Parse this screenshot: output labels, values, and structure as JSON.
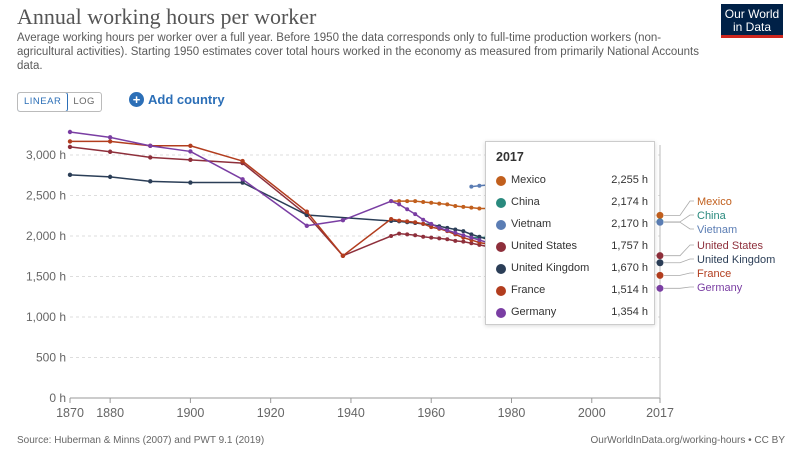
{
  "header": {
    "title": "Annual working hours per worker",
    "subtitle": "Average working hours per worker over a full year. Before 1950 the data corresponds only to full-time production workers (non-agricultural activities). Starting 1950 estimates cover total hours worked in the economy as measured from primarily National Accounts data.",
    "logo_line1": "Our World",
    "logo_line2": "in Data"
  },
  "controls": {
    "linear_label": "LINEAR",
    "log_label": "LOG",
    "add_country_label": "Add country"
  },
  "tooltip": {
    "year": "2017",
    "rows": [
      {
        "name": "Mexico",
        "value": "2,255 h"
      },
      {
        "name": "China",
        "value": "2,174 h"
      },
      {
        "name": "Vietnam",
        "value": "2,170 h"
      },
      {
        "name": "United States",
        "value": "1,757 h"
      },
      {
        "name": "United Kingdom",
        "value": "1,670 h"
      },
      {
        "name": "France",
        "value": "1,514 h"
      },
      {
        "name": "Germany",
        "value": "1,354 h"
      }
    ]
  },
  "footer": {
    "source": "Source: Huberman & Minns (2007) and PWT 9.1 (2019)",
    "credit": "OurWorldInData.org/working-hours • CC BY"
  },
  "chart_data": {
    "type": "line",
    "title": "Annual working hours per worker",
    "xlabel": "",
    "ylabel": "",
    "xlim": [
      1870,
      2017
    ],
    "ylim": [
      0,
      3000
    ],
    "x_ticks": [
      1870,
      1880,
      1900,
      1920,
      1940,
      1960,
      1980,
      2000,
      2017
    ],
    "y_ticks": [
      0,
      500,
      1000,
      1500,
      2000,
      2500,
      3000
    ],
    "y_tick_labels": [
      "0 h",
      "500 h",
      "1,000 h",
      "1,500 h",
      "2,000 h",
      "2,500 h",
      "3,000 h"
    ],
    "highlight_year": 2017,
    "series": [
      {
        "name": "Mexico",
        "color": "#c15f1d",
        "x": [
          1950,
          1952,
          1954,
          1956,
          1958,
          1960,
          1962,
          1964,
          1966,
          1968,
          1970,
          1972,
          1974,
          2017
        ],
        "y": [
          2430,
          2430,
          2430,
          2430,
          2420,
          2410,
          2400,
          2390,
          2370,
          2360,
          2350,
          2340,
          2340,
          2255
        ]
      },
      {
        "name": "China",
        "color": "#2a8a7e",
        "x": [
          1970,
          1972,
          1974,
          2017
        ],
        "y": [
          1980,
          1980,
          1985,
          2174
        ]
      },
      {
        "name": "Vietnam",
        "color": "#5b7db4",
        "x": [
          1970,
          1972,
          1974,
          2017
        ],
        "y": [
          2610,
          2620,
          2630,
          2170
        ]
      },
      {
        "name": "United States",
        "color": "#8e2f3b",
        "x": [
          1870,
          1880,
          1890,
          1900,
          1913,
          1929,
          1938,
          1950,
          1952,
          1954,
          1956,
          1958,
          1960,
          1962,
          1964,
          1966,
          1968,
          1970,
          1972,
          1974,
          2017
        ],
        "y": [
          3100,
          3040,
          2970,
          2940,
          2900,
          2260,
          1756,
          2000,
          2030,
          2020,
          2010,
          1990,
          1980,
          1970,
          1960,
          1940,
          1930,
          1910,
          1890,
          1870,
          1757
        ]
      },
      {
        "name": "United Kingdom",
        "color": "#2b3e57",
        "x": [
          1870,
          1880,
          1890,
          1900,
          1913,
          1929,
          1950,
          1952,
          1954,
          1956,
          1958,
          1960,
          1962,
          1964,
          1966,
          1968,
          1970,
          1972,
          1974,
          2017
        ],
        "y": [
          2755,
          2730,
          2675,
          2660,
          2660,
          2260,
          2185,
          2180,
          2170,
          2160,
          2150,
          2140,
          2120,
          2100,
          2080,
          2060,
          2020,
          1990,
          1960,
          1670
        ]
      },
      {
        "name": "France",
        "color": "#b23d1e",
        "x": [
          1870,
          1880,
          1890,
          1900,
          1913,
          1929,
          1938,
          1950,
          1952,
          1954,
          1956,
          1958,
          1960,
          1962,
          1964,
          1966,
          1968,
          1970,
          1972,
          1974,
          2017
        ],
        "y": [
          3168,
          3168,
          3114,
          3114,
          2925,
          2300,
          1756,
          2210,
          2190,
          2180,
          2170,
          2150,
          2110,
          2090,
          2060,
          2020,
          1980,
          1950,
          1920,
          1900,
          1514
        ]
      },
      {
        "name": "Germany",
        "color": "#7a3ea3",
        "x": [
          1870,
          1880,
          1890,
          1900,
          1913,
          1929,
          1938,
          1950,
          1952,
          1954,
          1956,
          1958,
          1960,
          1962,
          1964,
          1966,
          1968,
          1970,
          1972,
          1974,
          2017
        ],
        "y": [
          3284,
          3218,
          3113,
          3044,
          2700,
          2126,
          2195,
          2430,
          2390,
          2330,
          2270,
          2200,
          2150,
          2100,
          2070,
          2040,
          2010,
          1980,
          1950,
          1920,
          1354
        ]
      }
    ]
  }
}
